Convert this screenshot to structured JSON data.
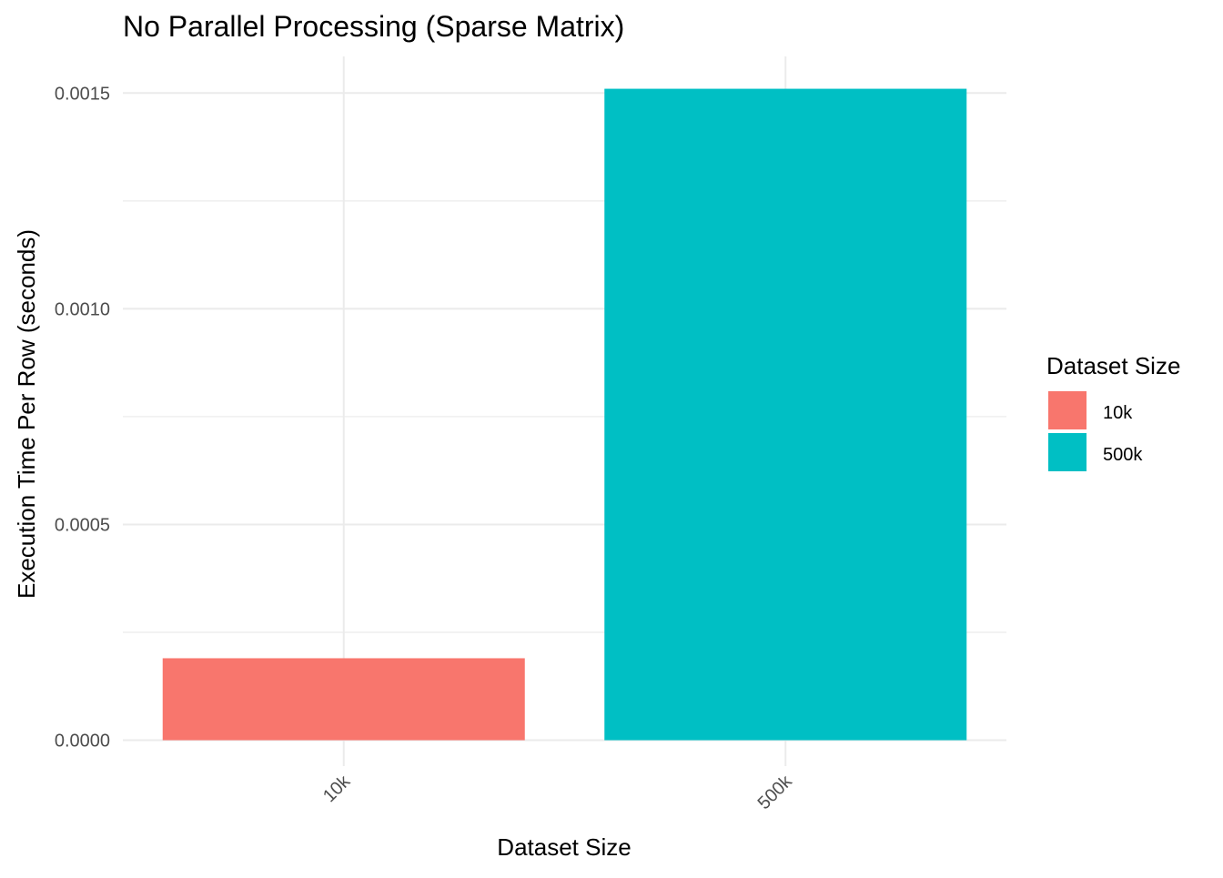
{
  "chart_data": {
    "type": "bar",
    "title": "No Parallel Processing (Sparse Matrix)",
    "xlabel": "Dataset Size",
    "ylabel": "Execution Time Per Row (seconds)",
    "categories": [
      "10k",
      "500k"
    ],
    "values": [
      0.00019,
      0.00151
    ],
    "colors": [
      "#F8766D",
      "#00BFC4"
    ],
    "ylim": [
      -6e-05,
      0.001585
    ],
    "y_ticks": [
      0.0,
      0.0005,
      0.001,
      0.0015
    ],
    "y_tick_labels": [
      "0.0000",
      "0.0005",
      "0.0010",
      "0.0015"
    ],
    "grid": true,
    "x_tick_rotation_deg": 45,
    "legend": {
      "title": "Dataset Size",
      "placement": "right",
      "items": [
        {
          "label": "10k",
          "color": "#F8766D"
        },
        {
          "label": "500k",
          "color": "#00BFC4"
        }
      ]
    }
  }
}
